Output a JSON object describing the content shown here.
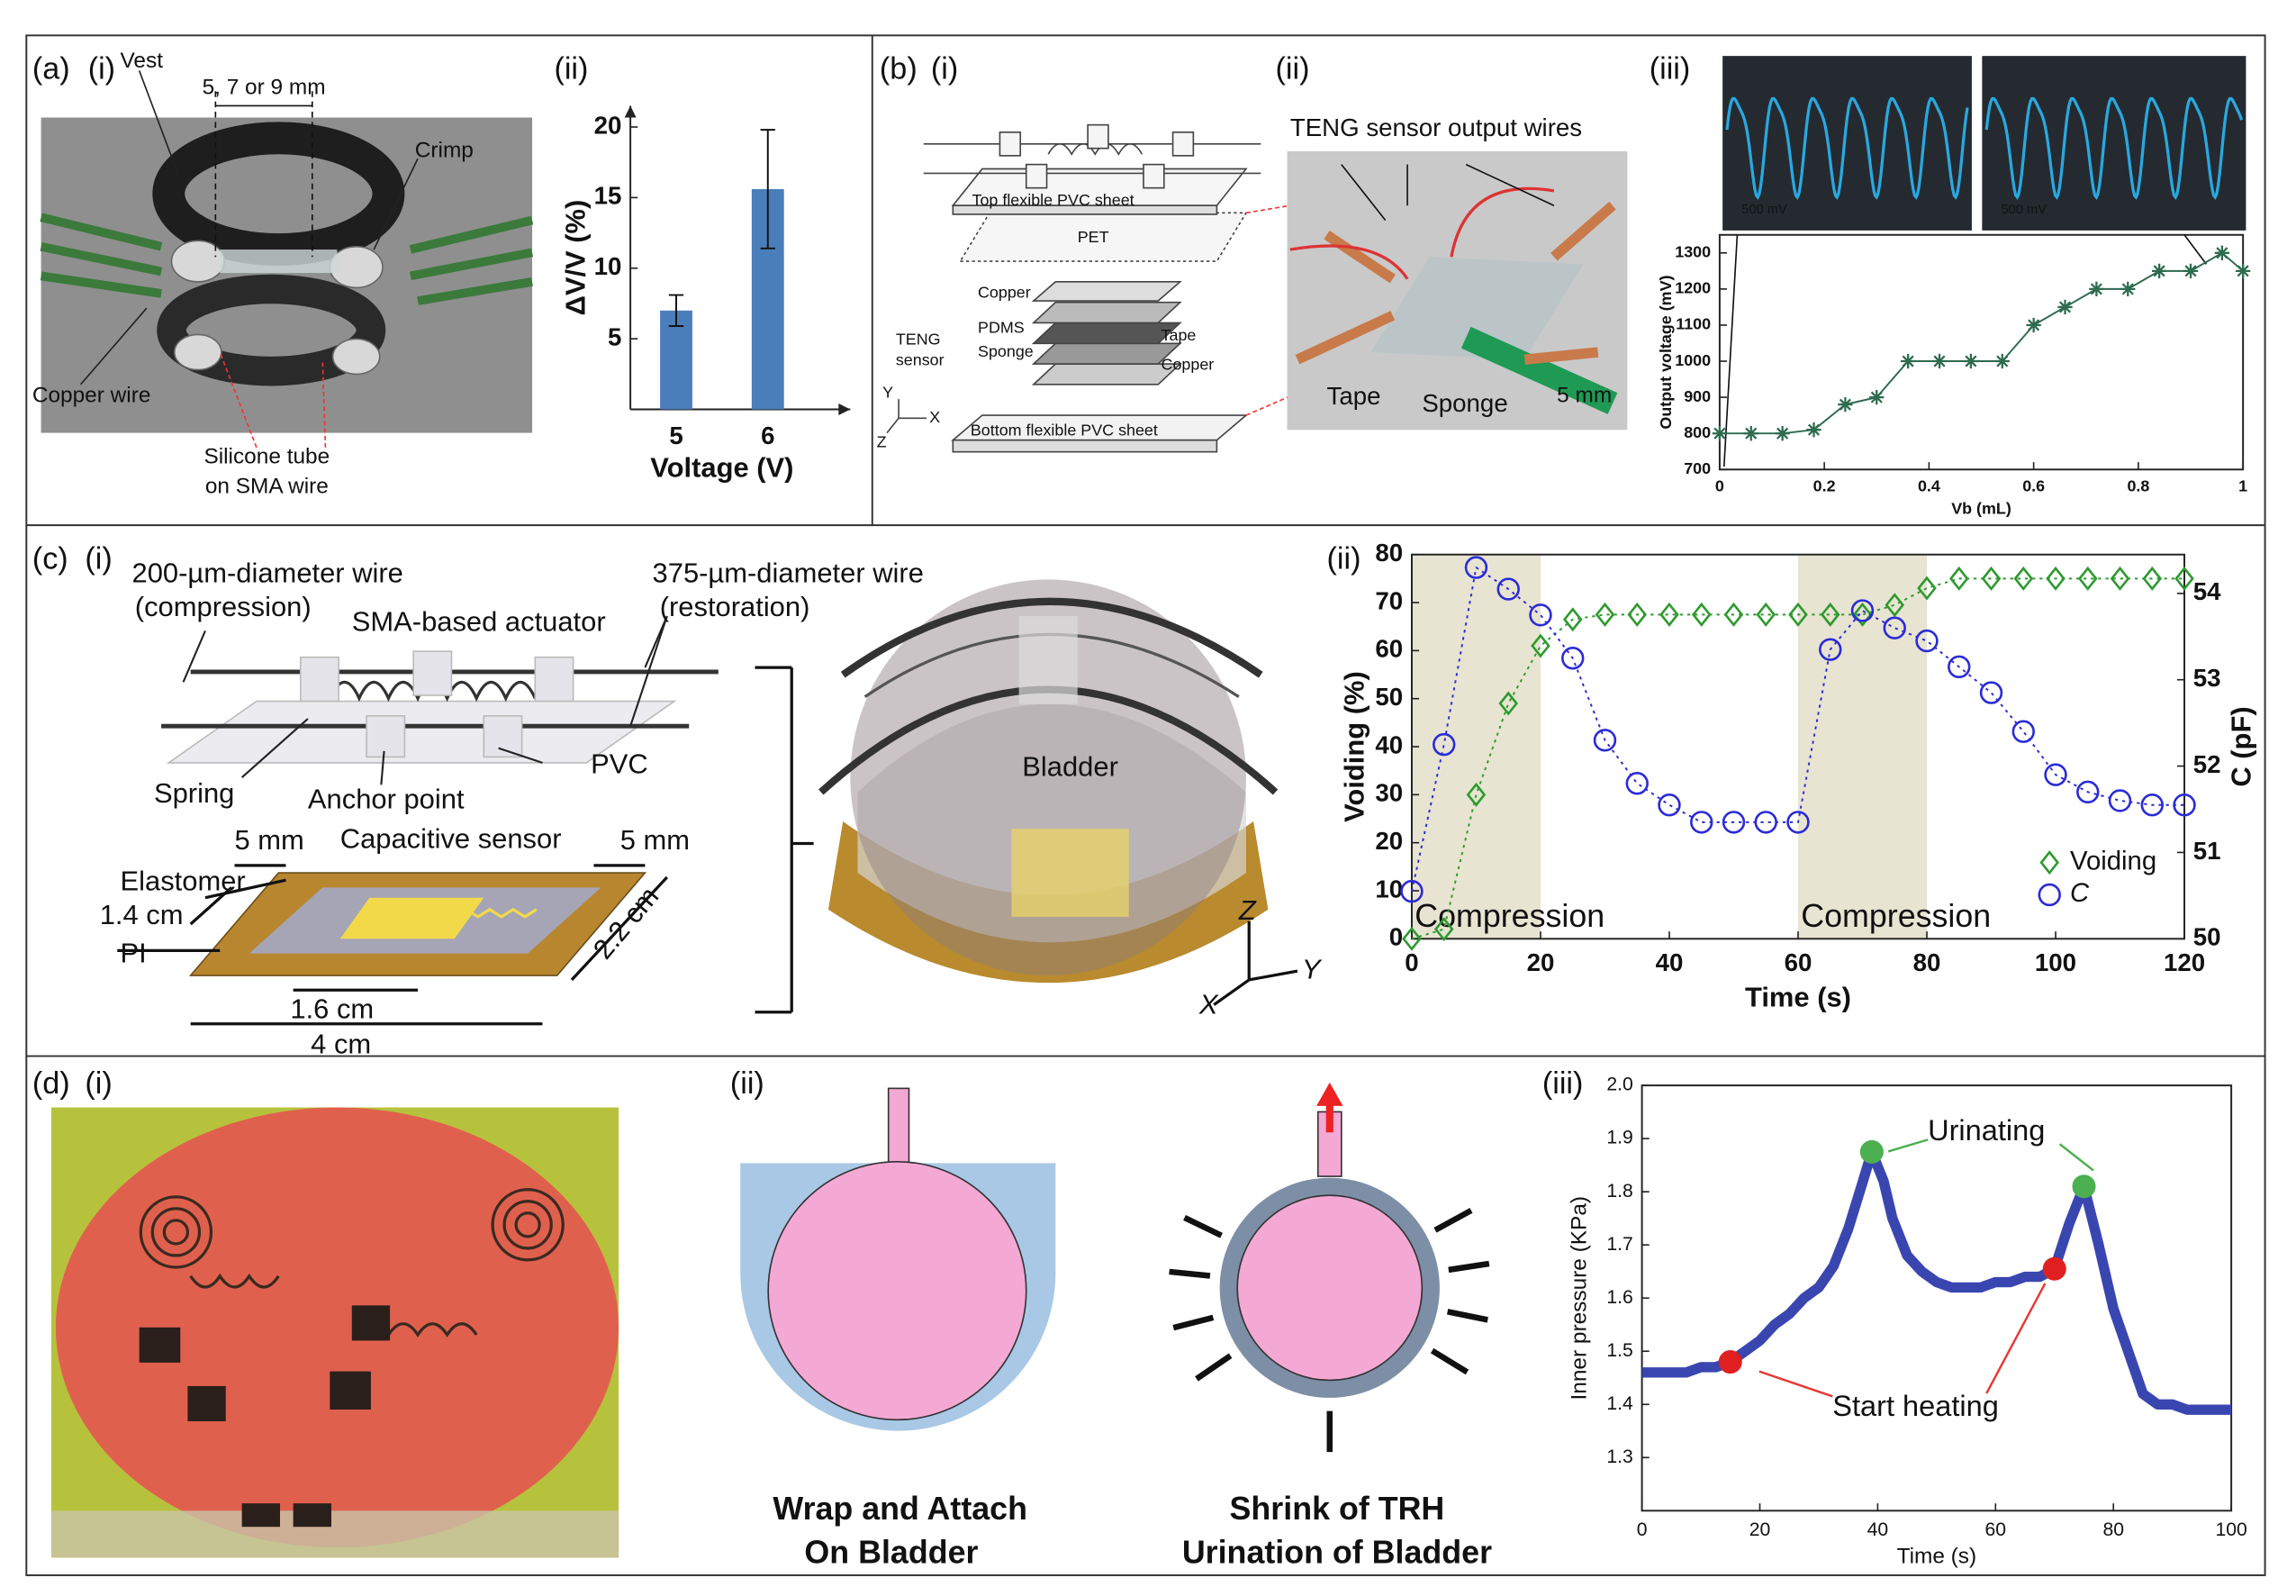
{
  "labels": {
    "a": "(a)",
    "a_i": "(i)",
    "a_ii": "(ii)",
    "vest": "Vest",
    "gap": "5, 7 or 9 mm",
    "crimp": "Crimp",
    "copper_wire": "Copper wire",
    "silicone_1": "Silicone tube",
    "silicone_2": "on SMA wire",
    "b": "(b)",
    "b_i": "(i)",
    "b_ii": "(ii)",
    "b_iii": "(iii)",
    "top_sheet": "Top flexible PVC sheet",
    "pet": "PET",
    "copper_top": "Copper",
    "pdms": "PDMS",
    "sponge_i": "Sponge",
    "teng_1": "TENG",
    "teng_2": "sensor",
    "tape_i": "Tape",
    "copper_bottom": "Copper",
    "bottom_sheet": "Bottom flexible PVC sheet",
    "axis_y_b": "Y",
    "axis_x_b": "X",
    "axis_z_b": "Z",
    "wires": "TENG sensor output wires",
    "tape_ii": "Tape",
    "sponge_ii": "Sponge",
    "scale_ii": "5 mm",
    "c": "(c)",
    "c_i": "(i)",
    "c_ii": "(ii)",
    "wire200_1": "200-µm-diameter wire",
    "wire200_2": "(compression)",
    "wire375_1": "375-µm-diameter wire",
    "wire375_2": "(restoration)",
    "actuator": "SMA-based actuator",
    "spring": "Spring",
    "anchor": "Anchor point",
    "pvc": "PVC",
    "mm5_left": "5 mm",
    "capacitive": "Capacitive sensor",
    "mm5_right": "5 mm",
    "elastomer": "Elastomer",
    "cm14": "1.4 cm",
    "pi": "PI",
    "cm22": "2.2 cm",
    "cm16": "1.6 cm",
    "cm4": "4 cm",
    "bladder": "Bladder",
    "axis_z_c": "Z",
    "axis_x_c": "X",
    "axis_y_c": "Y",
    "d": "(d)",
    "d_i": "(i)",
    "d_ii": "(ii)",
    "d_iii": "(iii)",
    "wrap_1": "Wrap and Attach",
    "wrap_2": "On Bladder",
    "shrink_1": "Shrink of TRH",
    "shrink_2": "Urination of Bladder"
  },
  "chart_data": [
    {
      "type": "bar",
      "categories": [
        "5",
        "6"
      ],
      "values": [
        7,
        15.6
      ],
      "errors": [
        1.1,
        4.2
      ],
      "color": "#4a7ebb",
      "xlabel": "Voltage (V)",
      "ylabel": "ΔV/V (%)",
      "ylim": [
        0,
        21.5
      ],
      "yticks": [
        5,
        10,
        15,
        20
      ]
    },
    {
      "type": "line",
      "xlabel": "Vb (mL)",
      "ylabel": "Output voltage (mV)",
      "x": [
        0,
        0.06,
        0.12,
        0.18,
        0.24,
        0.3,
        0.36,
        0.42,
        0.48,
        0.54,
        0.6,
        0.66,
        0.72,
        0.78,
        0.84,
        0.9,
        0.96,
        1
      ],
      "values": [
        800,
        800,
        800,
        810,
        880,
        900,
        1000,
        1000,
        1000,
        1000,
        1100,
        1150,
        1200,
        1200,
        1250,
        1250,
        1300,
        1250
      ],
      "color": "#2e6b4f",
      "marker": "asterisk",
      "xlim": [
        0,
        1
      ],
      "xticks": [
        0,
        0.2,
        0.4,
        0.6,
        0.8,
        1
      ],
      "ylim": [
        700,
        1350
      ],
      "yticks": [
        700,
        800,
        900,
        1000,
        1100,
        1200,
        1300
      ],
      "inset_labels": [
        "500 mV",
        "500 mV"
      ]
    },
    {
      "type": "line",
      "xlabel": "Time (s)",
      "ylabel": "Voiding (%)",
      "y2label": "C (pF)",
      "x": [
        0,
        5,
        10,
        15,
        20,
        25,
        30,
        35,
        40,
        45,
        50,
        55,
        60,
        65,
        70,
        75,
        80,
        85,
        90,
        95,
        100,
        105,
        110,
        115,
        120
      ],
      "series": [
        {
          "name": "Voiding",
          "color": "#2e9a2e",
          "marker": "diamond",
          "values": [
            0,
            2,
            30,
            49,
            61,
            66.5,
            67.5,
            67.5,
            67.5,
            67.5,
            67.5,
            67.5,
            67.5,
            67.5,
            67.5,
            69.5,
            73,
            75,
            75,
            75,
            75,
            75,
            75,
            75,
            75
          ]
        },
        {
          "name": "C",
          "color": "#2b2bd6",
          "marker": "circle",
          "axis": "y2",
          "values": [
            50.55,
            52.25,
            54.3,
            54.05,
            53.75,
            53.25,
            52.3,
            51.8,
            51.55,
            51.35,
            51.35,
            51.35,
            51.35,
            53.35,
            53.8,
            53.6,
            53.45,
            53.15,
            52.85,
            52.4,
            51.9,
            51.7,
            51.6,
            51.55,
            51.55
          ]
        }
      ],
      "xlim": [
        0,
        120
      ],
      "xticks": [
        0,
        20,
        40,
        60,
        80,
        100,
        120
      ],
      "ylim": [
        0,
        80
      ],
      "yticks": [
        0,
        10,
        20,
        30,
        40,
        50,
        60,
        70,
        80
      ],
      "y2lim": [
        50,
        54.45
      ],
      "y2ticks": [
        50,
        51,
        52,
        53,
        54
      ],
      "shaded": [
        {
          "x": [
            0,
            20
          ],
          "label": "Compression"
        },
        {
          "x": [
            60,
            80
          ],
          "label": "Compression"
        }
      ],
      "shade_color": "#e8e4d2",
      "legend": "lower right"
    },
    {
      "type": "line",
      "xlabel": "Time (s)",
      "ylabel": "Inner pressure (KPa)",
      "x": [
        0,
        2.5,
        5,
        7.5,
        10,
        12.5,
        15,
        17.5,
        20,
        22.5,
        25,
        27.5,
        30,
        32.5,
        35,
        37.5,
        39,
        41,
        42.5,
        45,
        47.5,
        50,
        52.5,
        55,
        57.5,
        60,
        62.5,
        65,
        67.5,
        70,
        72.5,
        75,
        77.5,
        80,
        82.5,
        85,
        87.5,
        90,
        92.5,
        95,
        97.5,
        100
      ],
      "values": [
        1.46,
        1.46,
        1.46,
        1.46,
        1.47,
        1.47,
        1.48,
        1.5,
        1.52,
        1.55,
        1.57,
        1.6,
        1.62,
        1.66,
        1.73,
        1.82,
        1.875,
        1.82,
        1.75,
        1.68,
        1.65,
        1.63,
        1.62,
        1.62,
        1.62,
        1.63,
        1.63,
        1.64,
        1.64,
        1.655,
        1.74,
        1.81,
        1.7,
        1.58,
        1.5,
        1.42,
        1.4,
        1.4,
        1.39,
        1.39,
        1.39,
        1.39
      ],
      "color": "#3a46b0",
      "xlim": [
        0,
        100
      ],
      "xticks": [
        0,
        20,
        40,
        60,
        80,
        100
      ],
      "ylim": [
        1.2,
        2.0
      ],
      "yticks": [
        1.3,
        1.4,
        1.5,
        1.6,
        1.7,
        1.8,
        1.9,
        {
          "value": 2,
          "label": "2.0"
        }
      ],
      "points": [
        {
          "x": 15,
          "y": 1.48,
          "color": "#e02020"
        },
        {
          "x": 39,
          "y": 1.875,
          "color": "#4caf50"
        },
        {
          "x": 70,
          "y": 1.655,
          "color": "#e02020"
        },
        {
          "x": 75,
          "y": 1.81,
          "color": "#4caf50"
        }
      ],
      "annotations": [
        {
          "text": "Urinating",
          "color": "#4caf50"
        },
        {
          "text": "Start heating",
          "color": "#e53935"
        }
      ]
    }
  ]
}
